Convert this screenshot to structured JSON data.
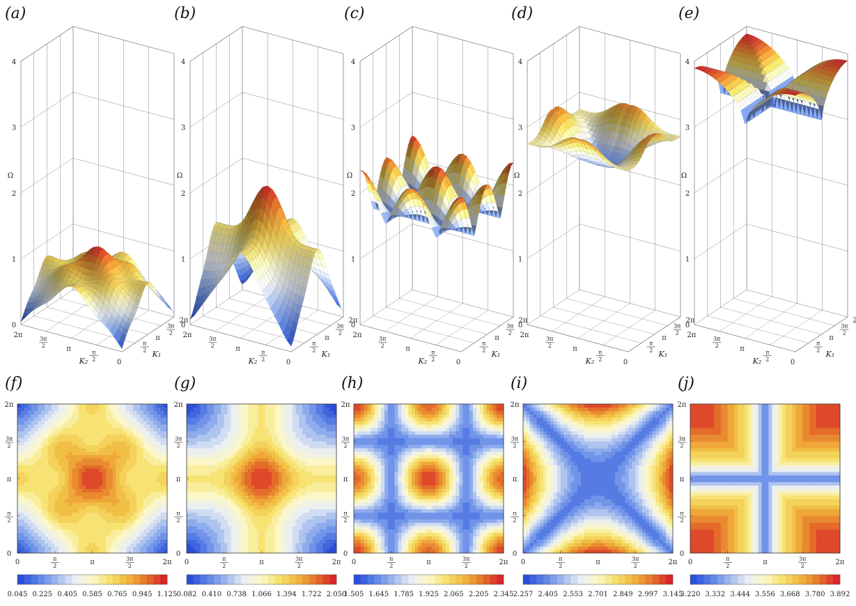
{
  "chart_data": [
    {
      "type": "surface3d",
      "panel_label": "(a)",
      "xlabel": "K₂",
      "ylabel": "K₁",
      "zlabel": "Ω",
      "zlim": [
        0,
        4
      ],
      "zticks": [
        "0",
        "1",
        "2",
        "3",
        "4"
      ],
      "k2_ticks": [
        "2π",
        "3π/2",
        "π",
        "π/2",
        "0"
      ],
      "k1_ticks": [
        "π/2",
        "π",
        "3π/2",
        "2π"
      ],
      "zrange": [
        0.045,
        1.125
      ],
      "z_at_corner": 0.045,
      "z_at_center": 1.125
    },
    {
      "type": "surface3d",
      "panel_label": "(b)",
      "xlabel": "K₂",
      "ylabel": "K₁",
      "zlabel": "Ω",
      "zlim": [
        0,
        4
      ],
      "zticks": [
        "0",
        "1",
        "2",
        "3",
        "4"
      ],
      "k2_ticks": [
        "2π",
        "3π/2",
        "π",
        "π/2",
        "0"
      ],
      "k1_ticks": [
        "π/2",
        "π",
        "3π/2",
        "2π"
      ],
      "zrange": [
        0.082,
        2.05
      ],
      "z_at_corner": 0.082,
      "z_at_center": 2.05
    },
    {
      "type": "surface3d",
      "panel_label": "(c)",
      "xlabel": "K₂",
      "ylabel": "K₁",
      "zlabel": "Ω",
      "zlim": [
        0,
        4
      ],
      "zticks": [
        "0",
        "1",
        "2",
        "3",
        "4"
      ],
      "k2_ticks": [
        "2π",
        "3π/2",
        "π",
        "π/2",
        "0"
      ],
      "k1_ticks": [
        "π/2",
        "π",
        "3π/2",
        "2π"
      ],
      "zrange": [
        1.505,
        2.345
      ],
      "z_at_corner": 2.345,
      "z_at_center": 2.0
    },
    {
      "type": "surface3d",
      "panel_label": "(d)",
      "xlabel": "K₂",
      "ylabel": "K₁",
      "zlabel": "Ω",
      "zlim": [
        0,
        4
      ],
      "zticks": [
        "0",
        "1",
        "2",
        "3",
        "4"
      ],
      "k2_ticks": [
        "2π",
        "3π/2",
        "π",
        "π/2",
        "0"
      ],
      "k1_ticks": [
        "π/2",
        "π",
        "3π/2",
        "2π"
      ],
      "zrange": [
        2.257,
        3.145
      ],
      "z_at_corner": 2.6,
      "z_at_center": 2.3
    },
    {
      "type": "surface3d",
      "panel_label": "(e)",
      "xlabel": "K₂",
      "ylabel": "K₁",
      "zlabel": "Ω",
      "zlim": [
        0,
        4
      ],
      "zticks": [
        "0",
        "1",
        "2",
        "3",
        "4"
      ],
      "k2_ticks": [
        "2π",
        "3π/2",
        "π",
        "π/2",
        "0"
      ],
      "k1_ticks": [
        "π/2",
        "π",
        "3π/2",
        "2π"
      ],
      "zrange": [
        3.22,
        3.892
      ],
      "z_at_corner": 3.6,
      "z_at_center": 3.22
    },
    {
      "type": "contour",
      "panel_label": "(f)",
      "xlim": [
        0,
        6.2832
      ],
      "ylim": [
        0,
        6.2832
      ],
      "xticks": [
        "0",
        "π/2",
        "π",
        "3π/2",
        "2π"
      ],
      "yticks": [
        "0",
        "π/2",
        "π",
        "3π/2",
        "2π"
      ],
      "colorbar": {
        "min": 0.045,
        "max": 1.125,
        "labels": [
          "0.045",
          "0.225",
          "0.405",
          "0.585",
          "0.765",
          "0.945",
          "1.125"
        ]
      }
    },
    {
      "type": "contour",
      "panel_label": "(g)",
      "xlim": [
        0,
        6.2832
      ],
      "ylim": [
        0,
        6.2832
      ],
      "xticks": [
        "0",
        "π/2",
        "π",
        "3π/2",
        "2π"
      ],
      "yticks": [
        "0",
        "π/2",
        "π",
        "3π/2",
        "2π"
      ],
      "colorbar": {
        "min": 0.082,
        "max": 2.05,
        "labels": [
          "0.082",
          "0.410",
          "0.738",
          "1.066",
          "1.394",
          "1.722",
          "2.050"
        ]
      }
    },
    {
      "type": "contour",
      "panel_label": "(h)",
      "xlim": [
        0,
        6.2832
      ],
      "ylim": [
        0,
        6.2832
      ],
      "xticks": [
        "0",
        "π/2",
        "π",
        "3π/2",
        "2π"
      ],
      "yticks": [
        "0",
        "π/2",
        "π",
        "3π/2",
        "2π"
      ],
      "colorbar": {
        "min": 1.505,
        "max": 2.345,
        "labels": [
          "1.505",
          "1.645",
          "1.785",
          "1.925",
          "2.065",
          "2.205",
          "2.345"
        ]
      }
    },
    {
      "type": "contour",
      "panel_label": "(i)",
      "xlim": [
        0,
        6.2832
      ],
      "ylim": [
        0,
        6.2832
      ],
      "xticks": [
        "0",
        "π/2",
        "π",
        "3π/2",
        "2π"
      ],
      "yticks": [
        "0",
        "π/2",
        "π",
        "3π/2",
        "2π"
      ],
      "colorbar": {
        "min": 2.257,
        "max": 3.145,
        "labels": [
          "2.257",
          "2.405",
          "2.553",
          "2.701",
          "2.849",
          "2.997",
          "3.145"
        ]
      }
    },
    {
      "type": "contour",
      "panel_label": "(j)",
      "xlim": [
        0,
        6.2832
      ],
      "ylim": [
        0,
        6.2832
      ],
      "xticks": [
        "0",
        "π/2",
        "π",
        "3π/2",
        "2π"
      ],
      "yticks": [
        "0",
        "π/2",
        "π",
        "3π/2",
        "2π"
      ],
      "colorbar": {
        "min": 3.22,
        "max": 3.892,
        "labels": [
          "3.220",
          "3.332",
          "3.444",
          "3.556",
          "3.668",
          "3.780",
          "3.892"
        ]
      }
    }
  ],
  "colormap": [
    "#2b4fd8",
    "#5b82e6",
    "#9db8ee",
    "#e9eef4",
    "#fbf7c8",
    "#f6e06a",
    "#f0b53c",
    "#e5752a",
    "#d8262a"
  ]
}
